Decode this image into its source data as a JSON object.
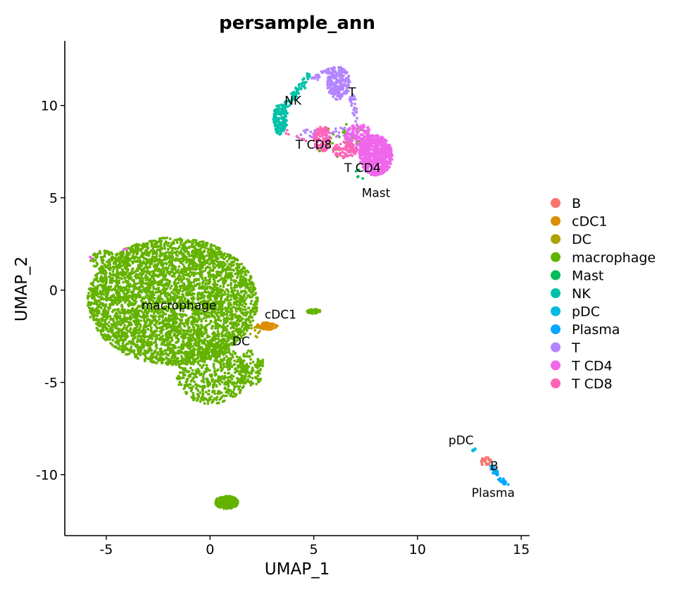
{
  "chart_data": {
    "type": "scatter",
    "title": "persample_ann",
    "xlabel": "UMAP_1",
    "ylabel": "UMAP_2",
    "xlim": [
      -7,
      15.4
    ],
    "ylim": [
      -13.3,
      13.5
    ],
    "xticks": [
      -5,
      0,
      5,
      10,
      15
    ],
    "yticks": [
      -10,
      -5,
      0,
      5,
      10
    ],
    "grid": false,
    "legend_position": "right",
    "series": [
      {
        "name": "B",
        "color": "#F8766D",
        "clusters": [
          {
            "shape": "ellipse",
            "cx": 13.3,
            "cy": -9.3,
            "rx": 0.25,
            "ry": 0.25,
            "n": 25
          }
        ]
      },
      {
        "name": "cDC1",
        "color": "#DB8E00",
        "clusters": [
          {
            "shape": "ellipse",
            "cx": 2.75,
            "cy": -1.95,
            "rx": 0.5,
            "ry": 0.2,
            "n": 70
          }
        ]
      },
      {
        "name": "DC",
        "color": "#AEA200",
        "clusters": [
          {
            "shape": "ellipse",
            "cx": 2.0,
            "cy": -2.4,
            "rx": 0.45,
            "ry": 0.5,
            "n": 10
          }
        ]
      },
      {
        "name": "macrophage",
        "color": "#64B200",
        "clusters": [
          {
            "shape": "ellipse",
            "cx": -1.8,
            "cy": -0.6,
            "rx": 4.1,
            "ry": 3.45,
            "n": 4200
          },
          {
            "shape": "ellipse",
            "cx": 0.1,
            "cy": -4.6,
            "rx": 1.7,
            "ry": 1.6,
            "n": 500
          },
          {
            "shape": "ellipse",
            "cx": 2.0,
            "cy": -4.2,
            "rx": 0.6,
            "ry": 1.0,
            "n": 120
          },
          {
            "shape": "ellipse",
            "cx": -4.8,
            "cy": 1.6,
            "rx": 1.0,
            "ry": 0.6,
            "n": 100
          },
          {
            "shape": "ellipse",
            "cx": 0.8,
            "cy": -11.5,
            "rx": 0.55,
            "ry": 0.35,
            "n": 260
          },
          {
            "shape": "ellipse",
            "cx": 5.0,
            "cy": -1.15,
            "rx": 0.35,
            "ry": 0.12,
            "n": 45
          },
          {
            "shape": "ellipse",
            "cx": 6.3,
            "cy": 8.1,
            "rx": 1.4,
            "ry": 0.9,
            "n": 30
          }
        ]
      },
      {
        "name": "Mast",
        "color": "#00BD5C",
        "clusters": [
          {
            "shape": "ellipse",
            "cx": 7.3,
            "cy": 6.3,
            "rx": 0.3,
            "ry": 0.3,
            "n": 6
          }
        ]
      },
      {
        "name": "NK",
        "color": "#00C1A7",
        "clusters": [
          {
            "shape": "ellipse",
            "cx": 3.4,
            "cy": 9.3,
            "rx": 0.35,
            "ry": 0.9,
            "n": 140
          },
          {
            "shape": "line",
            "x0": 3.5,
            "y0": 9.8,
            "x1": 4.8,
            "y1": 11.6,
            "w": 0.18,
            "n": 70
          }
        ]
      },
      {
        "name": "pDC",
        "color": "#00BADE",
        "clusters": [
          {
            "shape": "ellipse",
            "cx": 12.7,
            "cy": -8.6,
            "rx": 0.12,
            "ry": 0.12,
            "n": 6
          }
        ]
      },
      {
        "name": "Plasma",
        "color": "#00A6FF",
        "clusters": [
          {
            "shape": "line",
            "x0": 13.5,
            "y0": -9.5,
            "x1": 14.3,
            "y1": -10.6,
            "w": 0.1,
            "n": 45
          }
        ]
      },
      {
        "name": "T",
        "color": "#B385FF",
        "clusters": [
          {
            "shape": "ellipse",
            "cx": 6.2,
            "cy": 11.2,
            "rx": 0.55,
            "ry": 0.9,
            "n": 230
          },
          {
            "shape": "line",
            "x0": 5.0,
            "y0": 11.5,
            "x1": 6.0,
            "y1": 12.0,
            "w": 0.15,
            "n": 30
          },
          {
            "shape": "line",
            "x0": 6.8,
            "y0": 10.6,
            "x1": 7.1,
            "y1": 9.2,
            "w": 0.15,
            "n": 30
          },
          {
            "shape": "line",
            "x0": 4.2,
            "y0": 8.4,
            "x1": 6.8,
            "y1": 8.6,
            "w": 0.25,
            "n": 40
          }
        ]
      },
      {
        "name": "T CD4",
        "color": "#EF67EB",
        "clusters": [
          {
            "shape": "ellipse",
            "cx": 8.0,
            "cy": 7.3,
            "rx": 0.8,
            "ry": 1.1,
            "n": 620
          },
          {
            "shape": "ellipse",
            "cx": 7.2,
            "cy": 8.2,
            "rx": 0.7,
            "ry": 0.8,
            "n": 200
          },
          {
            "shape": "ellipse",
            "cx": -5.8,
            "cy": 1.7,
            "rx": 0.1,
            "ry": 0.1,
            "n": 3
          },
          {
            "shape": "ellipse",
            "cx": -4.1,
            "cy": 2.2,
            "rx": 0.1,
            "ry": 0.1,
            "n": 3
          }
        ]
      },
      {
        "name": "T CD8",
        "color": "#FF63B6",
        "clusters": [
          {
            "shape": "ellipse",
            "cx": 5.4,
            "cy": 8.2,
            "rx": 0.4,
            "ry": 0.7,
            "n": 130
          },
          {
            "shape": "ellipse",
            "cx": 6.5,
            "cy": 7.6,
            "rx": 0.6,
            "ry": 0.45,
            "n": 90
          },
          {
            "shape": "line",
            "x0": 3.6,
            "y0": 8.6,
            "x1": 4.8,
            "y1": 8.0,
            "w": 0.1,
            "n": 8
          }
        ]
      }
    ],
    "cluster_labels": [
      {
        "text": "NK",
        "x": 4.0,
        "y": 10.05
      },
      {
        "text": "T",
        "x": 6.85,
        "y": 10.5
      },
      {
        "text": "T CD8",
        "x": 5.0,
        "y": 7.65
      },
      {
        "text": "T CD4",
        "x": 7.35,
        "y": 6.4
      },
      {
        "text": "Mast",
        "x": 8.0,
        "y": 5.05
      },
      {
        "text": "macrophage",
        "x": -1.5,
        "y": -1.05
      },
      {
        "text": "cDC1",
        "x": 3.4,
        "y": -1.55
      },
      {
        "text": "DC",
        "x": 1.5,
        "y": -3.0
      },
      {
        "text": "pDC",
        "x": 12.1,
        "y": -8.35
      },
      {
        "text": "B",
        "x": 13.7,
        "y": -9.75
      },
      {
        "text": "Plasma",
        "x": 13.65,
        "y": -11.2
      }
    ]
  }
}
